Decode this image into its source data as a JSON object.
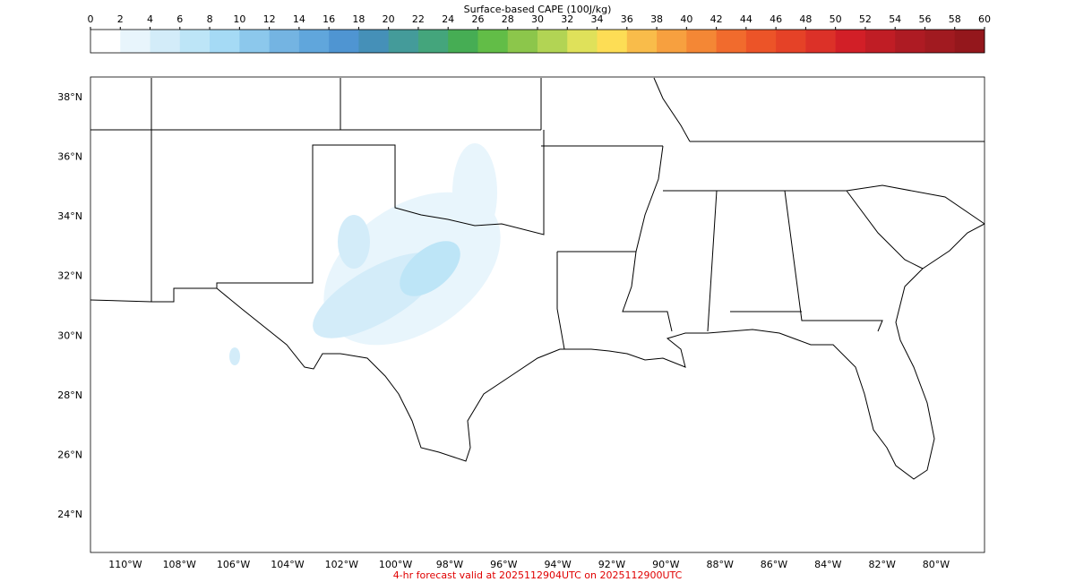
{
  "colorbar": {
    "label": "Surface-based CAPE (100J/kg)",
    "ticks": [
      0,
      2,
      4,
      6,
      8,
      10,
      12,
      14,
      16,
      18,
      20,
      22,
      24,
      26,
      28,
      30,
      32,
      34,
      36,
      38,
      40,
      42,
      44,
      46,
      48,
      50,
      52,
      54,
      56,
      58,
      60
    ],
    "colors": [
      "#ffffff",
      "#e8f5fc",
      "#d3ecf9",
      "#bde5f7",
      "#a5daf5",
      "#8cc8ec",
      "#74b4e2",
      "#60a6dc",
      "#4f95d2",
      "#4590b8",
      "#449b9a",
      "#44a57c",
      "#46ad54",
      "#62bd47",
      "#8cc64b",
      "#b2d454",
      "#dfe15a",
      "#fddd55",
      "#f9bc4a",
      "#f7a03f",
      "#f48735",
      "#f16b2d",
      "#ec5428",
      "#e54227",
      "#dc3128",
      "#d21f27",
      "#c01d25",
      "#ae1b23",
      "#a11a20",
      "#94171c"
    ]
  },
  "map": {
    "lon_lim": [
      -111.29,
      -78.21
    ],
    "lat_lim": [
      22.74,
      38.69
    ],
    "lat_ticks": [
      {
        "value": 38,
        "label": "38°N"
      },
      {
        "value": 36,
        "label": "36°N"
      },
      {
        "value": 34,
        "label": "34°N"
      },
      {
        "value": 32,
        "label": "32°N"
      },
      {
        "value": 30,
        "label": "30°N"
      },
      {
        "value": 28,
        "label": "28°N"
      },
      {
        "value": 26,
        "label": "26°N"
      },
      {
        "value": 24,
        "label": "24°N"
      }
    ],
    "lon_ticks": [
      {
        "value": -110,
        "label": "110°W"
      },
      {
        "value": -108,
        "label": "108°W"
      },
      {
        "value": -106,
        "label": "106°W"
      },
      {
        "value": -104,
        "label": "104°W"
      },
      {
        "value": -102,
        "label": "102°W"
      },
      {
        "value": -100,
        "label": "100°W"
      },
      {
        "value": -98,
        "label": "98°W"
      },
      {
        "value": -96,
        "label": "96°W"
      },
      {
        "value": -94,
        "label": "94°W"
      },
      {
        "value": -92,
        "label": "92°W"
      },
      {
        "value": -90,
        "label": "90°W"
      },
      {
        "value": -88,
        "label": "88°W"
      },
      {
        "value": -86,
        "label": "86°W"
      },
      {
        "value": -84,
        "label": "84°W"
      },
      {
        "value": -82,
        "label": "82°W"
      },
      {
        "value": -80,
        "label": "80°W"
      }
    ]
  },
  "footer": "4-hr forecast valid at 2025112904UTC on 2025112900UTC"
}
